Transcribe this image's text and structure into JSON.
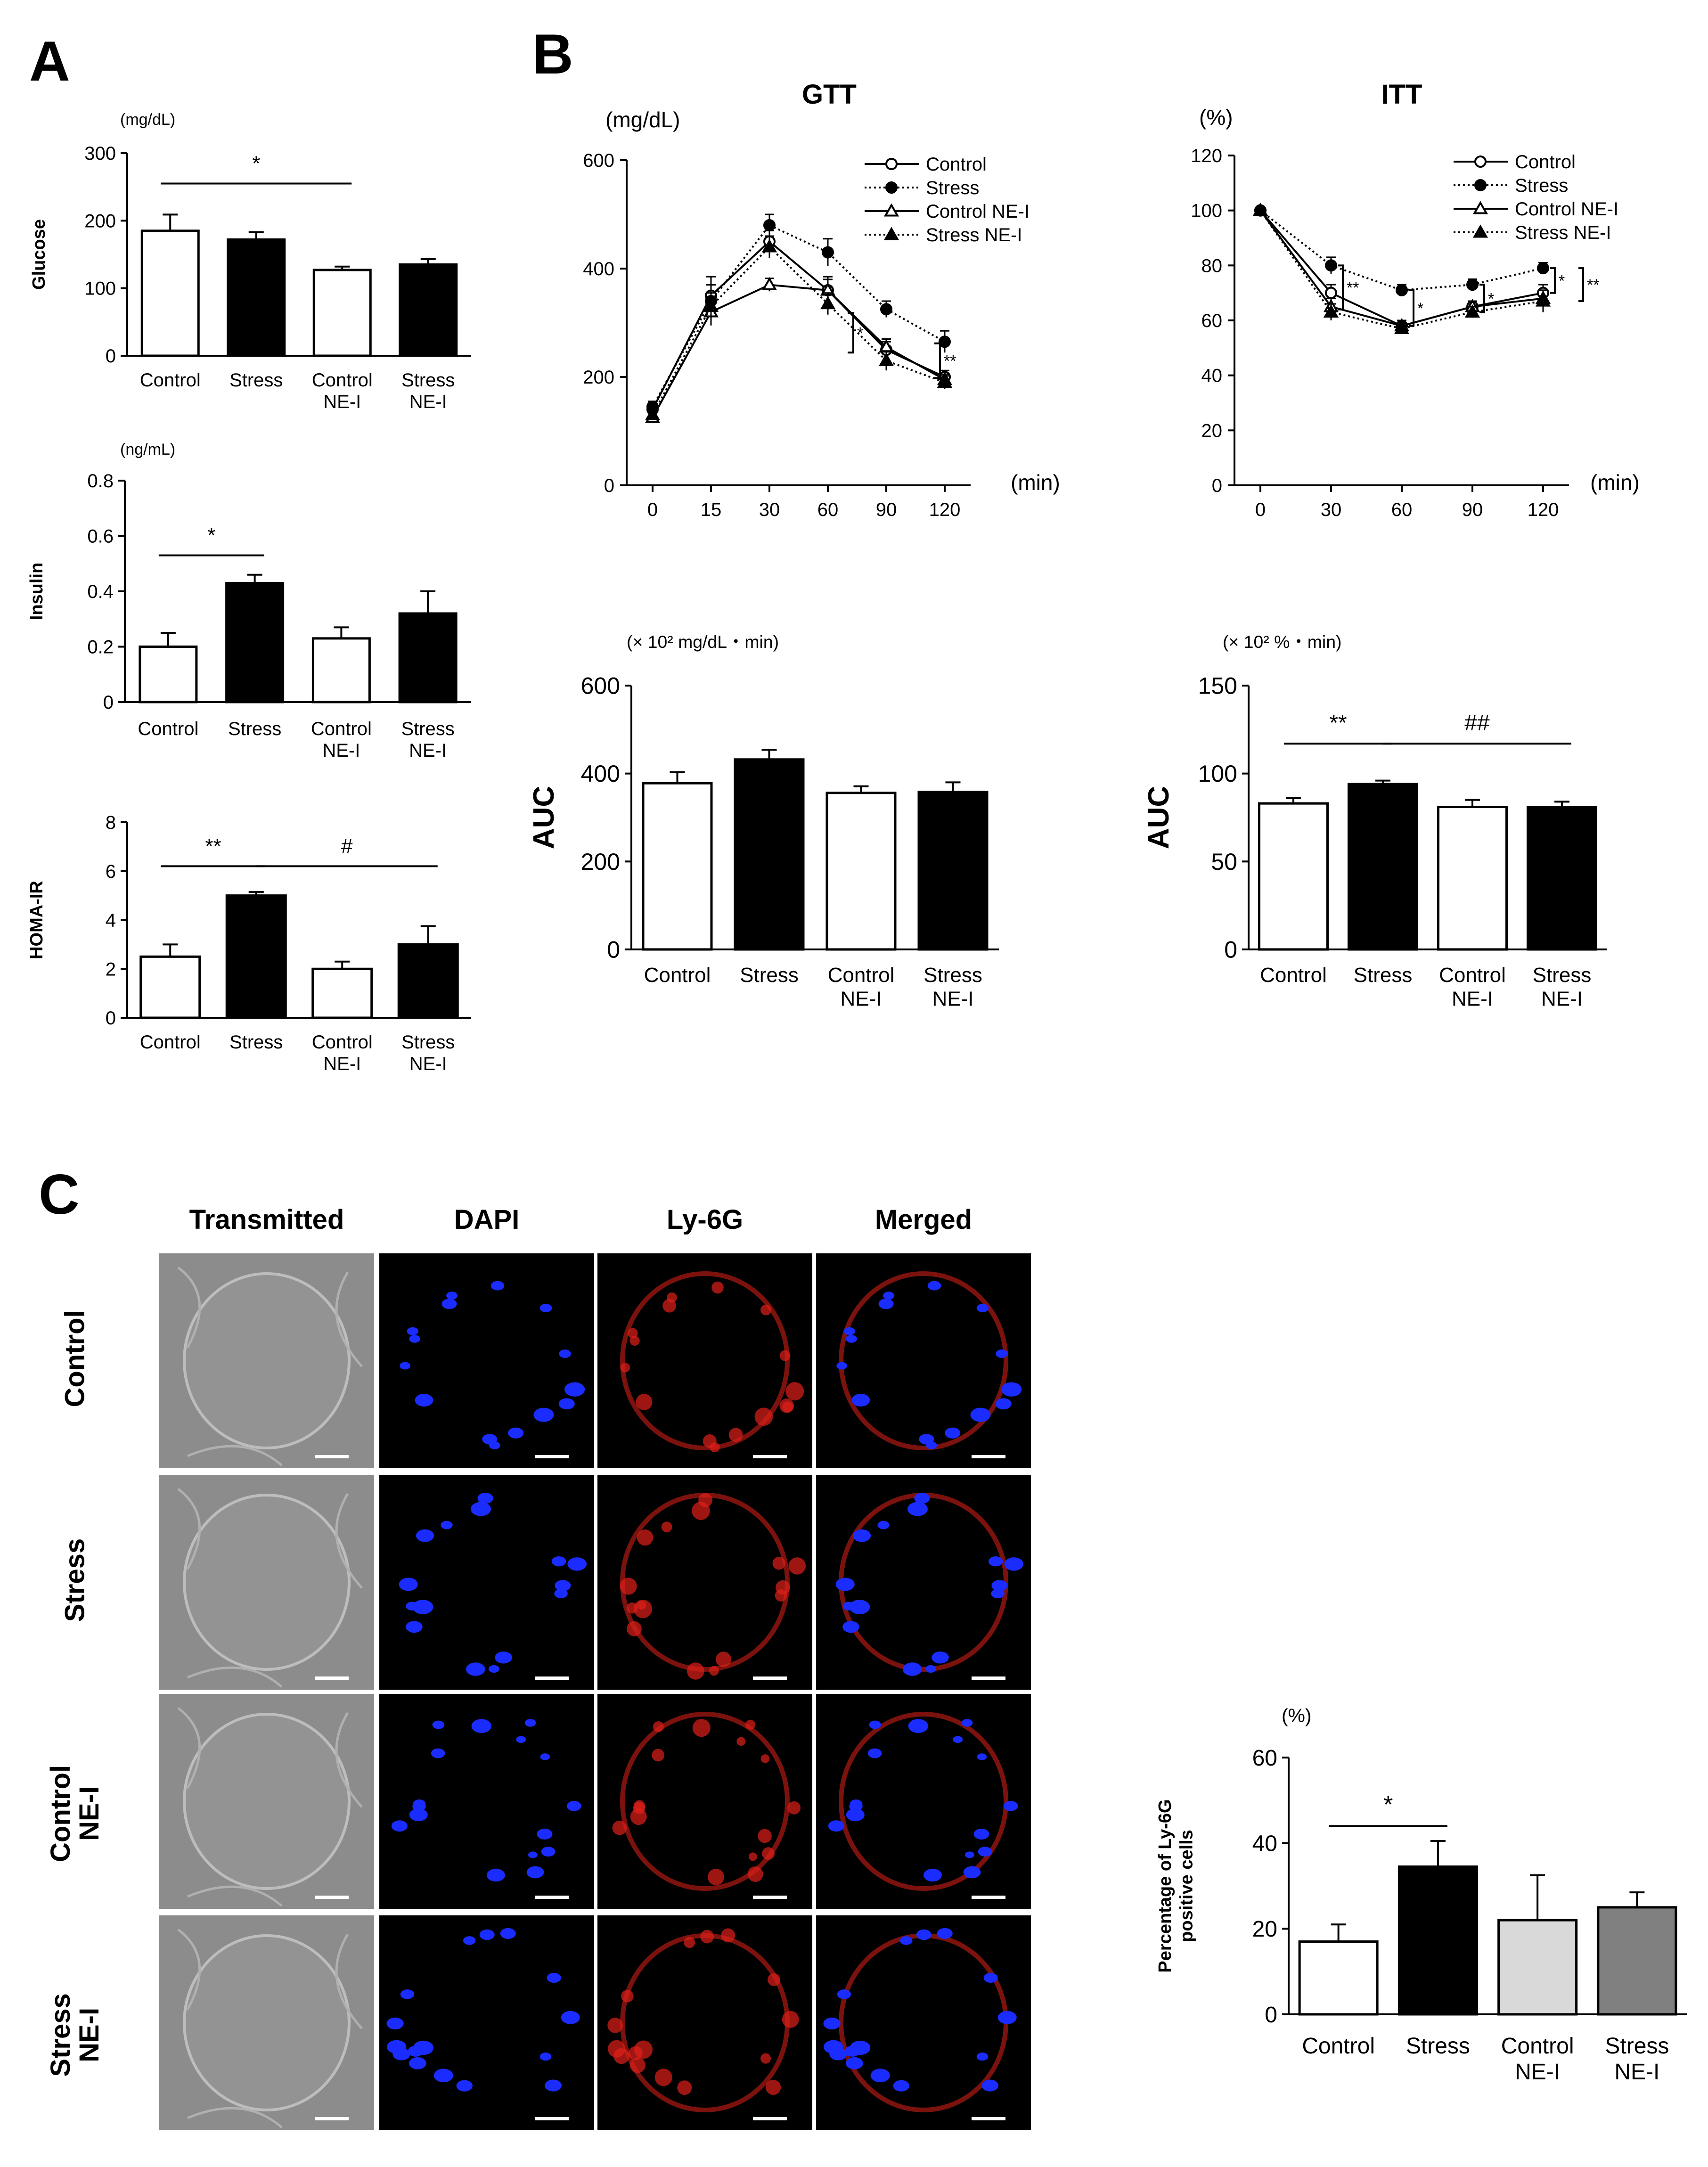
{
  "panels": {
    "a": "A",
    "b": "B",
    "c": "C"
  },
  "colors": {
    "black": "#000000",
    "white": "#ffffff",
    "lightgray": "#d9d9d9",
    "gray": "#808080",
    "dapi": "#1a2cff",
    "ly6g": "#e0201a",
    "bg": "#000000",
    "transmitted": "#8c8c8c"
  },
  "chart_data": [
    {
      "id": "A_glucose",
      "type": "bar",
      "unit": "(mg/dL)",
      "ylabel": "Glucose",
      "categories": [
        [
          "Control"
        ],
        [
          "Stress"
        ],
        [
          "Control",
          "NE-I"
        ],
        [
          "Stress",
          "NE-I"
        ]
      ],
      "values": [
        185,
        172,
        127,
        135
      ],
      "errors": [
        24,
        11,
        5,
        8
      ],
      "fills": [
        "#ffffff",
        "#000000",
        "#ffffff",
        "#000000"
      ],
      "ylim": [
        0,
        300
      ],
      "yticks": [
        0,
        100,
        200,
        300
      ],
      "sig": [
        {
          "from": 0,
          "to": 2,
          "label": "*",
          "level": 255
        }
      ]
    },
    {
      "id": "A_insulin",
      "type": "bar",
      "unit": "(ng/mL)",
      "ylabel": "Insulin",
      "categories": [
        [
          "Control"
        ],
        [
          "Stress"
        ],
        [
          "Control",
          "NE-I"
        ],
        [
          "Stress",
          "NE-I"
        ]
      ],
      "values": [
        0.2,
        0.43,
        0.23,
        0.32
      ],
      "errors": [
        0.05,
        0.03,
        0.04,
        0.08
      ],
      "fills": [
        "#ffffff",
        "#000000",
        "#ffffff",
        "#000000"
      ],
      "ylim": [
        0,
        0.8
      ],
      "yticks": [
        "0",
        "0.2",
        "0.4",
        "0.6",
        "0.8"
      ],
      "sig": [
        {
          "from": 0,
          "to": 1,
          "label": "*",
          "level": 0.53
        }
      ]
    },
    {
      "id": "A_homa",
      "type": "bar",
      "unit": "",
      "ylabel": "HOMA-IR",
      "categories": [
        [
          "Control"
        ],
        [
          "Stress"
        ],
        [
          "Control",
          "NE-I"
        ],
        [
          "Stress",
          "NE-I"
        ]
      ],
      "values": [
        2.5,
        5.0,
        2.0,
        3.0
      ],
      "errors": [
        0.5,
        0.15,
        0.3,
        0.75
      ],
      "fills": [
        "#ffffff",
        "#000000",
        "#ffffff",
        "#000000"
      ],
      "ylim": [
        0,
        8
      ],
      "yticks": [
        0,
        2,
        4,
        6,
        8
      ],
      "sig": [
        {
          "from": 0,
          "to": 1,
          "label": "**",
          "level": 6.2
        },
        {
          "from": 1,
          "to": 3,
          "label": "#",
          "level": 6.2
        }
      ]
    },
    {
      "id": "B_gtt",
      "type": "line",
      "title": "GTT",
      "unit": "(mg/dL)",
      "xlabel": "(min)",
      "x": [
        0,
        15,
        30,
        60,
        90,
        120
      ],
      "ylim": [
        0,
        600
      ],
      "yticks": [
        0,
        200,
        400,
        600
      ],
      "series": [
        {
          "name": "Control",
          "marker": "circle-open",
          "dash": false,
          "values": [
            140,
            350,
            450,
            360,
            250,
            200
          ],
          "errors": [
            10,
            35,
            20,
            25,
            15,
            12
          ]
        },
        {
          "name": "Stress",
          "marker": "circle-filled",
          "dash": true,
          "values": [
            145,
            340,
            480,
            430,
            325,
            265
          ],
          "errors": [
            10,
            30,
            20,
            25,
            15,
            20
          ]
        },
        {
          "name": "Control NE-I",
          "marker": "triangle-open",
          "dash": false,
          "values": [
            125,
            320,
            370,
            360,
            255,
            195
          ],
          "errors": [
            10,
            25,
            12,
            20,
            15,
            10
          ]
        },
        {
          "name": "Stress NE-I",
          "marker": "triangle-filled",
          "dash": true,
          "values": [
            130,
            330,
            440,
            335,
            230,
            190
          ],
          "errors": [
            10,
            25,
            20,
            20,
            18,
            12
          ]
        }
      ],
      "annotations": [
        "*",
        "**"
      ]
    },
    {
      "id": "B_itt",
      "type": "line",
      "title": "ITT",
      "unit": "(%)",
      "xlabel": "(min)",
      "x": [
        0,
        30,
        60,
        90,
        120
      ],
      "ylim": [
        0,
        120
      ],
      "yticks": [
        0,
        20,
        40,
        60,
        80,
        100,
        120
      ],
      "series": [
        {
          "name": "Control",
          "marker": "circle-open",
          "dash": false,
          "values": [
            100,
            70,
            58,
            65,
            70
          ],
          "errors": [
            1,
            3,
            2,
            2,
            3
          ]
        },
        {
          "name": "Stress",
          "marker": "circle-filled",
          "dash": true,
          "values": [
            100,
            80,
            71,
            73,
            79
          ],
          "errors": [
            1,
            3,
            2,
            2,
            2
          ]
        },
        {
          "name": "Control NE-I",
          "marker": "triangle-open",
          "dash": false,
          "values": [
            100,
            65,
            58,
            65,
            68
          ],
          "errors": [
            1,
            3,
            2,
            2,
            3
          ]
        },
        {
          "name": "Stress NE-I",
          "marker": "triangle-filled",
          "dash": true,
          "values": [
            100,
            63,
            57,
            63,
            67
          ],
          "errors": [
            1,
            3,
            2,
            2,
            4
          ]
        }
      ],
      "annotations": [
        "**",
        "*",
        "*",
        "*",
        "**"
      ]
    },
    {
      "id": "B_gtt_auc",
      "type": "bar",
      "unit": "(× 10² mg/dL・min)",
      "ylabel": "AUC",
      "categories": [
        [
          "Control"
        ],
        [
          "Stress"
        ],
        [
          "Control",
          "NE-I"
        ],
        [
          "Stress",
          "NE-I"
        ]
      ],
      "values": [
        378,
        432,
        356,
        358
      ],
      "errors": [
        25,
        22,
        15,
        22
      ],
      "fills": [
        "#ffffff",
        "#000000",
        "#ffffff",
        "#000000"
      ],
      "ylim": [
        0,
        600
      ],
      "yticks": [
        0,
        200,
        400,
        600
      ],
      "sig": []
    },
    {
      "id": "B_itt_auc",
      "type": "bar",
      "unit": "(× 10² %・min)",
      "ylabel": "AUC",
      "categories": [
        [
          "Control"
        ],
        [
          "Stress"
        ],
        [
          "Control",
          "NE-I"
        ],
        [
          "Stress",
          "NE-I"
        ]
      ],
      "values": [
        83,
        94,
        81,
        81
      ],
      "errors": [
        3,
        2,
        4,
        3
      ],
      "fills": [
        "#ffffff",
        "#000000",
        "#ffffff",
        "#000000"
      ],
      "ylim": [
        0,
        150
      ],
      "yticks": [
        0,
        50,
        100,
        150
      ],
      "sig": [
        {
          "from": 0,
          "to": 1,
          "label": "**",
          "level": 117
        },
        {
          "from": 1,
          "to": 3,
          "label": "##",
          "level": 117
        }
      ]
    },
    {
      "id": "C_ly6g",
      "type": "bar",
      "unit": "(%)",
      "ylabel": [
        "Percentage of Ly-6G",
        "positive cells"
      ],
      "categories": [
        [
          "Control"
        ],
        [
          "Stress"
        ],
        [
          "Control",
          "NE-I"
        ],
        [
          "Stress",
          "NE-I"
        ]
      ],
      "values": [
        17,
        34.5,
        22,
        25
      ],
      "errors": [
        4,
        6,
        10.5,
        3.5
      ],
      "fills": [
        "#ffffff",
        "#000000",
        "#d9d9d9",
        "#808080"
      ],
      "ylim": [
        0,
        60
      ],
      "yticks": [
        0,
        20,
        40,
        60
      ],
      "sig": [
        {
          "from": 0,
          "to": 1,
          "label": "*",
          "level": 44
        }
      ]
    }
  ],
  "micrographs": {
    "columns": [
      "Transmitted",
      "DAPI",
      "Ly-6G",
      "Merged"
    ],
    "rows": [
      [
        "Control"
      ],
      [
        "Stress"
      ],
      [
        "Control",
        "NE-I"
      ],
      [
        "Stress",
        "NE-I"
      ]
    ]
  }
}
